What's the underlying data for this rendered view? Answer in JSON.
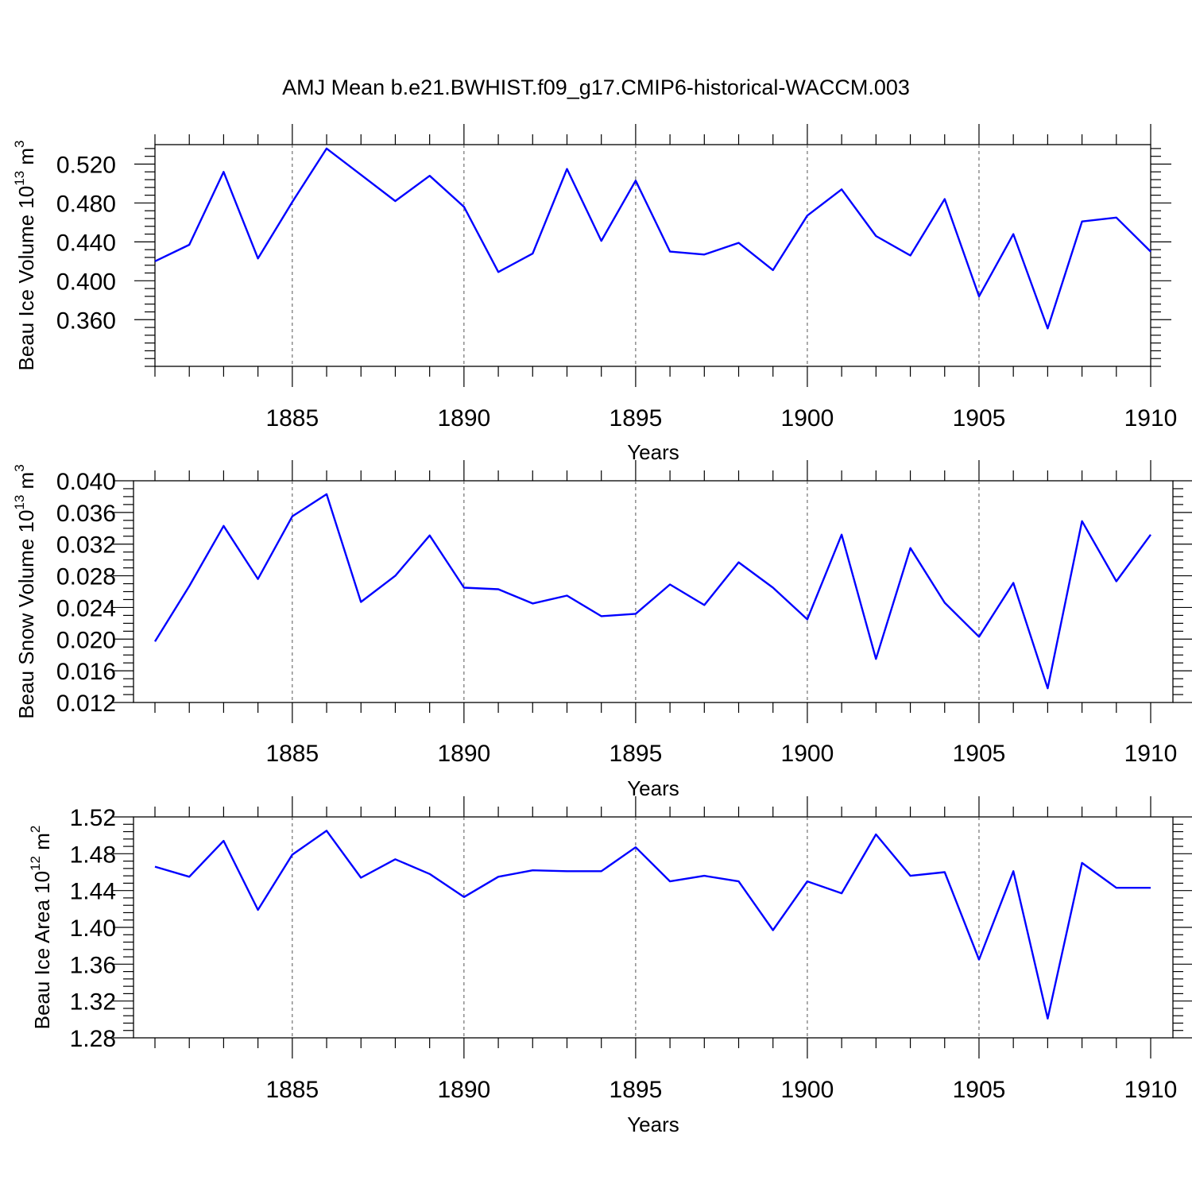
{
  "title": "AMJ Mean b.e21.BWHIST.f09_g17.CMIP6-historical-WACCM.003",
  "colors": {
    "line": "#0000ff",
    "frame": "#000000",
    "grid": "#555555"
  },
  "chart_data": [
    {
      "type": "line",
      "title": "AMJ Mean b.e21.BWHIST.f09_g17.CMIP6-historical-WACCM.003",
      "xlabel": "Years",
      "ylabel": "Beau Ice Volume 10",
      "ylabel_exp": "13",
      "ylabel_unit": " m",
      "ylabel_unit_exp": "3",
      "xlim": [
        1881,
        1910
      ],
      "ylim": [
        0.312,
        0.54
      ],
      "yticks": [
        0.36,
        0.4,
        0.44,
        0.48,
        0.52
      ],
      "ytick_labels": [
        "0.360",
        "0.400",
        "0.440",
        "0.480",
        "0.520"
      ],
      "yminor_step": 0.008,
      "xticks": [
        1885,
        1890,
        1895,
        1900,
        1905,
        1910
      ],
      "xtick_labels": [
        "1885",
        "1890",
        "1895",
        "1900",
        "1905",
        "1910"
      ],
      "grid": "vertical-dashed",
      "series": [
        {
          "name": "Beau Ice Volume",
          "x": [
            1881,
            1882,
            1883,
            1884,
            1885,
            1886,
            1887,
            1888,
            1889,
            1890,
            1891,
            1892,
            1893,
            1894,
            1895,
            1896,
            1897,
            1898,
            1899,
            1900,
            1901,
            1902,
            1903,
            1904,
            1905,
            1906,
            1907,
            1908,
            1909,
            1910
          ],
          "y": [
            0.42,
            0.437,
            0.512,
            0.423,
            0.481,
            0.536,
            0.509,
            0.482,
            0.508,
            0.476,
            0.409,
            0.428,
            0.515,
            0.441,
            0.503,
            0.43,
            0.427,
            0.439,
            0.411,
            0.467,
            0.494,
            0.446,
            0.426,
            0.484,
            0.384,
            0.448,
            0.351,
            0.461,
            0.465,
            0.43
          ]
        }
      ]
    },
    {
      "type": "line",
      "xlabel": "Years",
      "ylabel": "Beau Snow Volume 10",
      "ylabel_exp": "13",
      "ylabel_unit": " m",
      "ylabel_unit_exp": "3",
      "xlim": [
        1881,
        1910
      ],
      "ylim": [
        0.012,
        0.04
      ],
      "yticks": [
        0.012,
        0.016,
        0.02,
        0.024,
        0.028,
        0.032,
        0.036,
        0.04
      ],
      "ytick_labels": [
        "0.012",
        "0.016",
        "0.020",
        "0.024",
        "0.028",
        "0.032",
        "0.036",
        "0.040"
      ],
      "yminor_step": 0.001,
      "xticks": [
        1885,
        1890,
        1895,
        1900,
        1905,
        1910
      ],
      "xtick_labels": [
        "1885",
        "1890",
        "1895",
        "1900",
        "1905",
        "1910"
      ],
      "grid": "vertical-dashed",
      "series": [
        {
          "name": "Beau Snow Volume",
          "x": [
            1881,
            1882,
            1883,
            1884,
            1885,
            1886,
            1887,
            1888,
            1889,
            1890,
            1891,
            1892,
            1893,
            1894,
            1895,
            1896,
            1897,
            1898,
            1899,
            1900,
            1901,
            1902,
            1903,
            1904,
            1905,
            1906,
            1907,
            1908,
            1909,
            1910
          ],
          "y": [
            0.0197,
            0.0267,
            0.0343,
            0.0276,
            0.0355,
            0.0383,
            0.0247,
            0.028,
            0.0331,
            0.0265,
            0.0263,
            0.0245,
            0.0255,
            0.0229,
            0.0232,
            0.0269,
            0.0243,
            0.0297,
            0.0265,
            0.0225,
            0.0332,
            0.0175,
            0.0315,
            0.0246,
            0.0203,
            0.0271,
            0.0138,
            0.0349,
            0.0273,
            0.0332
          ]
        }
      ]
    },
    {
      "type": "line",
      "xlabel": "Years",
      "ylabel": "Beau Ice Area 10",
      "ylabel_exp": "12",
      "ylabel_unit": " m",
      "ylabel_unit_exp": "2",
      "xlim": [
        1881,
        1910
      ],
      "ylim": [
        1.28,
        1.52
      ],
      "yticks": [
        1.28,
        1.32,
        1.36,
        1.4,
        1.44,
        1.48,
        1.52
      ],
      "ytick_labels": [
        "1.28",
        "1.32",
        "1.36",
        "1.40",
        "1.44",
        "1.48",
        "1.52"
      ],
      "yminor_step": 0.008,
      "xticks": [
        1885,
        1890,
        1895,
        1900,
        1905,
        1910
      ],
      "xtick_labels": [
        "1885",
        "1890",
        "1895",
        "1900",
        "1905",
        "1910"
      ],
      "grid": "vertical-dashed",
      "series": [
        {
          "name": "Beau Ice Area",
          "x": [
            1881,
            1882,
            1883,
            1884,
            1885,
            1886,
            1887,
            1888,
            1889,
            1890,
            1891,
            1892,
            1893,
            1894,
            1895,
            1896,
            1897,
            1898,
            1899,
            1900,
            1901,
            1902,
            1903,
            1904,
            1905,
            1906,
            1907,
            1908,
            1909,
            1910
          ],
          "y": [
            1.466,
            1.455,
            1.494,
            1.419,
            1.479,
            1.505,
            1.454,
            1.474,
            1.458,
            1.433,
            1.455,
            1.462,
            1.461,
            1.461,
            1.487,
            1.45,
            1.456,
            1.45,
            1.397,
            1.45,
            1.437,
            1.501,
            1.456,
            1.46,
            1.365,
            1.461,
            1.301,
            1.47,
            1.443,
            1.443
          ]
        }
      ]
    }
  ]
}
